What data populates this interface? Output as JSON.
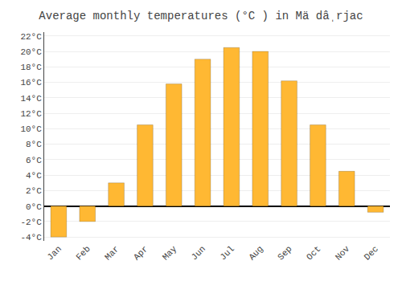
{
  "chart_data": {
    "type": "bar",
    "title": "Average monthly temperatures (°C ) in Mä dâˌrjac",
    "categories": [
      "Jan",
      "Feb",
      "Mar",
      "Apr",
      "May",
      "Jun",
      "Jul",
      "Aug",
      "Sep",
      "Oct",
      "Nov",
      "Dec"
    ],
    "values": [
      -4.0,
      -2.0,
      3.0,
      10.5,
      15.8,
      19.0,
      20.5,
      20.0,
      16.2,
      10.5,
      4.5,
      -0.8
    ],
    "color": "#FFB833",
    "ylim": [
      -4.5,
      22.5
    ],
    "yticks": [
      {
        "value": -4,
        "label": "-4°C"
      },
      {
        "value": -2,
        "label": "-2°C"
      },
      {
        "value": 0,
        "label": "0°C"
      },
      {
        "value": 2,
        "label": "2°C"
      },
      {
        "value": 4,
        "label": "4°C"
      },
      {
        "value": 6,
        "label": "6°C"
      },
      {
        "value": 8,
        "label": "8°C"
      },
      {
        "value": 10,
        "label": "10°C"
      },
      {
        "value": 12,
        "label": "12°C"
      },
      {
        "value": 14,
        "label": "14°C"
      },
      {
        "value": 16,
        "label": "16°C"
      },
      {
        "value": 18,
        "label": "18°C"
      },
      {
        "value": 20,
        "label": "20°C"
      },
      {
        "value": 22,
        "label": "22°C"
      }
    ],
    "grid": true
  }
}
